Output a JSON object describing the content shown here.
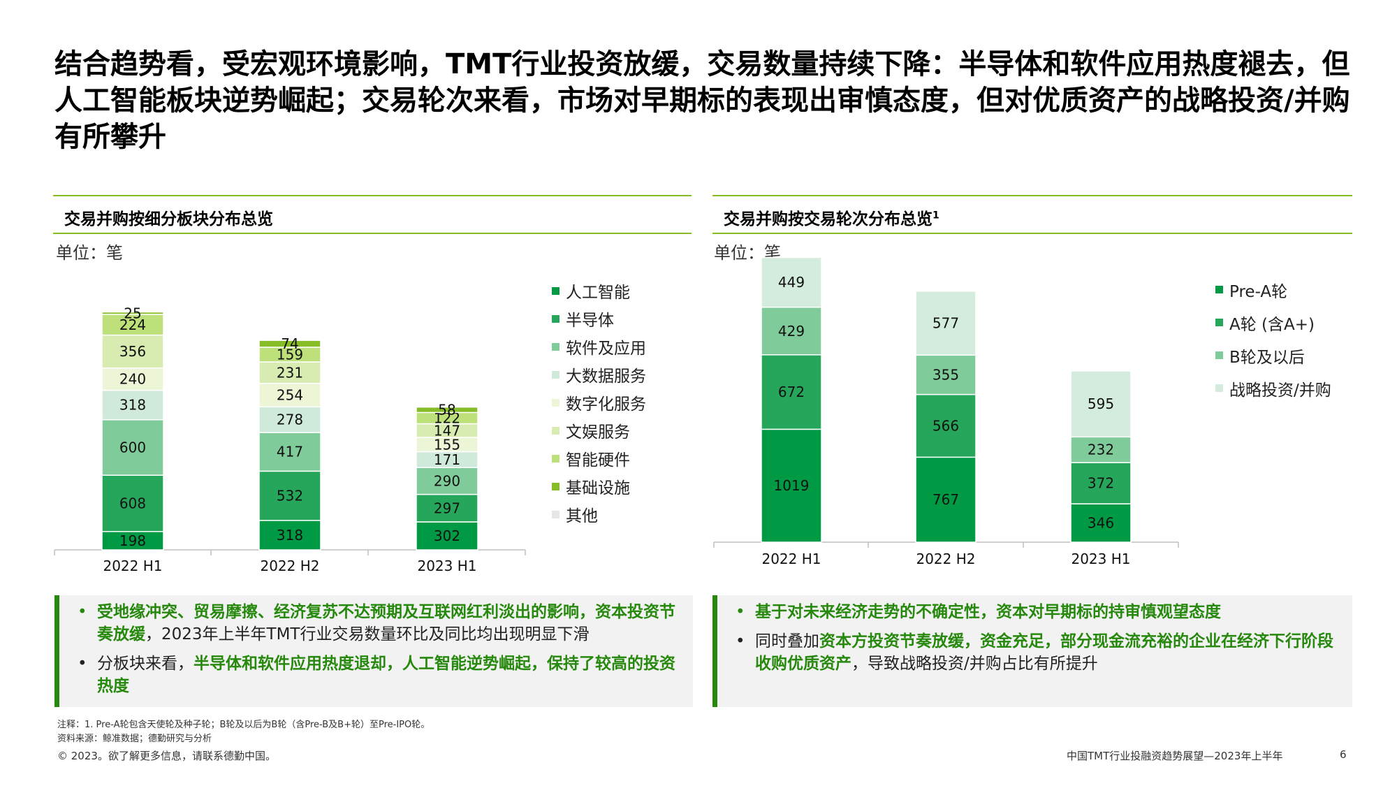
{
  "title": "结合趋势看，受宏观环境影响，TMT行业投资放缓，交易数量持续下降：半导体和软件应用热度褪去，但人工智能板块逆势崛起；交易轮次来看，市场对早期标的表现出审慎态度，但对优质资产的战略投资/并购有所攀升",
  "left_panel": {
    "title": "交易并购按细分板块分布总览",
    "unit": "单位：笔",
    "notes": [
      {
        "bullet_color": "#26890d",
        "parts": [
          {
            "text": "受地缘冲突、贸易摩擦、经济复苏不达预期及互联网红利淡出的影响，资本投资节奏放缓",
            "hl": true
          },
          {
            "text": "，2023年上半年TMT行业交易数量环比及同比均出现明显下滑",
            "hl": false
          }
        ]
      },
      {
        "bullet_color": "#222222",
        "parts": [
          {
            "text": "分板块来看，",
            "hl": false
          },
          {
            "text": "半导体和软件应用热度退却，人工智能逆势崛起，保持了较高的投资热度",
            "hl": true
          }
        ]
      }
    ]
  },
  "right_panel": {
    "title": "交易并购按交易轮次分布总览",
    "title_sup": "1",
    "unit": "单位：笔",
    "notes": [
      {
        "bullet_color": "#26890d",
        "parts": [
          {
            "text": "基于对未来经济走势的不确定性，资本对早期标的持审慎观望态度",
            "hl": true
          }
        ]
      },
      {
        "bullet_color": "#222222",
        "parts": [
          {
            "text": "同时叠加",
            "hl": false
          },
          {
            "text": "资本方投资节奏放缓，资金充足，部分现金流充裕的企业在经济下行阶段收购优质资产",
            "hl": true
          },
          {
            "text": "，导致战略投资/并购占比有所提升",
            "hl": false
          }
        ]
      }
    ]
  },
  "chart_data": [
    {
      "type": "bar",
      "stacked": true,
      "categories": [
        "2022 H1",
        "2022 H2",
        "2023 H1"
      ],
      "legend_position": "right",
      "series": [
        {
          "name": "人工智能",
          "color": "#009a44",
          "values": [
            198,
            318,
            302
          ]
        },
        {
          "name": "半导体",
          "color": "#26a65b",
          "values": [
            608,
            532,
            297
          ]
        },
        {
          "name": "软件及应用",
          "color": "#7fcc9a",
          "values": [
            600,
            417,
            290
          ]
        },
        {
          "name": "大数据服务",
          "color": "#cfeadb",
          "values": [
            318,
            278,
            171
          ]
        },
        {
          "name": "数字化服务",
          "color": "#ecf5d6",
          "values": [
            240,
            254,
            155
          ]
        },
        {
          "name": "文娱服务",
          "color": "#d8ebb0",
          "values": [
            356,
            231,
            147
          ]
        },
        {
          "name": "智能硬件",
          "color": "#bde07a",
          "values": [
            224,
            159,
            122
          ]
        },
        {
          "name": "基础设施",
          "color": "#86bc25",
          "values": [
            25,
            74,
            58
          ]
        },
        {
          "name": "其他",
          "color": "#e6e6e6",
          "values": [
            null,
            null,
            null
          ]
        }
      ]
    },
    {
      "type": "bar",
      "stacked": true,
      "categories": [
        "2022 H1",
        "2022 H2",
        "2023 H1"
      ],
      "legend_position": "right",
      "series": [
        {
          "name": "Pre-A轮",
          "color": "#009a44",
          "values": [
            1019,
            767,
            346
          ]
        },
        {
          "name": "A轮 (含A+)",
          "color": "#26a65b",
          "values": [
            672,
            566,
            372
          ]
        },
        {
          "name": "B轮及以后",
          "color": "#7fcc9a",
          "values": [
            429,
            355,
            232
          ]
        },
        {
          "name": "战略投资/并购",
          "color": "#d3ecdd",
          "values": [
            449,
            577,
            595
          ]
        }
      ]
    }
  ],
  "footer": {
    "note": "注释：1. Pre-A轮包含天使轮及种子轮；B轮及以后为B轮（含Pre-B及B+轮）至Pre-IPO轮。",
    "source": "资料来源：鲸准数据；德勤研究与分析",
    "copyright": "© 2023。欲了解更多信息，请联系德勤中国。",
    "report": "中国TMT行业投融资趋势展望—2023年上半年",
    "page": "6"
  }
}
